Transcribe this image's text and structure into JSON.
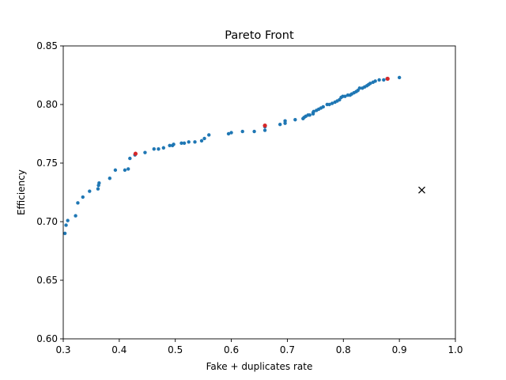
{
  "chart_data": {
    "type": "scatter",
    "title": "Pareto Front",
    "xlabel": "Fake + duplicates rate",
    "ylabel": "Efficiency",
    "xlim": [
      0.3,
      1.0
    ],
    "ylim": [
      0.6,
      0.85
    ],
    "xticks": [
      "0.3",
      "0.4",
      "0.5",
      "0.6",
      "0.7",
      "0.8",
      "0.9",
      "1.0"
    ],
    "yticks": [
      "0.60",
      "0.65",
      "0.70",
      "0.75",
      "0.80",
      "0.85"
    ],
    "grid": false,
    "legend": "none",
    "colors": {
      "front": "#1f77b4",
      "highlight": "#d62728",
      "reference": "#000000"
    },
    "series": [
      {
        "marker": "dot",
        "color": "#1f77b4",
        "points": [
          [
            0.303,
            0.69
          ],
          [
            0.305,
            0.697
          ],
          [
            0.308,
            0.701
          ],
          [
            0.322,
            0.705
          ],
          [
            0.326,
            0.716
          ],
          [
            0.335,
            0.721
          ],
          [
            0.347,
            0.726
          ],
          [
            0.362,
            0.728
          ],
          [
            0.363,
            0.731
          ],
          [
            0.364,
            0.733
          ],
          [
            0.383,
            0.737
          ],
          [
            0.393,
            0.744
          ],
          [
            0.41,
            0.744
          ],
          [
            0.416,
            0.745
          ],
          [
            0.419,
            0.754
          ],
          [
            0.428,
            0.757
          ],
          [
            0.446,
            0.759
          ],
          [
            0.462,
            0.762
          ],
          [
            0.47,
            0.762
          ],
          [
            0.479,
            0.763
          ],
          [
            0.49,
            0.765
          ],
          [
            0.495,
            0.765
          ],
          [
            0.497,
            0.766
          ],
          [
            0.511,
            0.767
          ],
          [
            0.516,
            0.767
          ],
          [
            0.524,
            0.768
          ],
          [
            0.535,
            0.768
          ],
          [
            0.547,
            0.769
          ],
          [
            0.552,
            0.771
          ],
          [
            0.56,
            0.774
          ],
          [
            0.595,
            0.775
          ],
          [
            0.6,
            0.776
          ],
          [
            0.62,
            0.777
          ],
          [
            0.641,
            0.777
          ],
          [
            0.66,
            0.778
          ],
          [
            0.66,
            0.781
          ],
          [
            0.687,
            0.783
          ],
          [
            0.696,
            0.784
          ],
          [
            0.696,
            0.786
          ],
          [
            0.714,
            0.787
          ],
          [
            0.728,
            0.788
          ],
          [
            0.73,
            0.789
          ],
          [
            0.733,
            0.79
          ],
          [
            0.737,
            0.791
          ],
          [
            0.74,
            0.791
          ],
          [
            0.746,
            0.792
          ],
          [
            0.746,
            0.793
          ],
          [
            0.747,
            0.794
          ],
          [
            0.752,
            0.795
          ],
          [
            0.756,
            0.796
          ],
          [
            0.76,
            0.797
          ],
          [
            0.764,
            0.798
          ],
          [
            0.771,
            0.8
          ],
          [
            0.775,
            0.8
          ],
          [
            0.78,
            0.801
          ],
          [
            0.785,
            0.802
          ],
          [
            0.789,
            0.803
          ],
          [
            0.793,
            0.804
          ],
          [
            0.796,
            0.806
          ],
          [
            0.799,
            0.807
          ],
          [
            0.803,
            0.807
          ],
          [
            0.808,
            0.808
          ],
          [
            0.812,
            0.808
          ],
          [
            0.815,
            0.809
          ],
          [
            0.819,
            0.81
          ],
          [
            0.823,
            0.811
          ],
          [
            0.826,
            0.812
          ],
          [
            0.829,
            0.814
          ],
          [
            0.834,
            0.814
          ],
          [
            0.838,
            0.815
          ],
          [
            0.842,
            0.816
          ],
          [
            0.845,
            0.817
          ],
          [
            0.848,
            0.818
          ],
          [
            0.853,
            0.819
          ],
          [
            0.857,
            0.82
          ],
          [
            0.864,
            0.821
          ],
          [
            0.872,
            0.821
          ],
          [
            0.878,
            0.822
          ],
          [
            0.9,
            0.823
          ]
        ]
      },
      {
        "marker": "dot",
        "color": "#d62728",
        "points": [
          [
            0.429,
            0.758
          ],
          [
            0.66,
            0.782
          ],
          [
            0.879,
            0.822
          ]
        ]
      },
      {
        "marker": "x",
        "color": "#000000",
        "points": [
          [
            0.94,
            0.727
          ]
        ]
      }
    ]
  }
}
